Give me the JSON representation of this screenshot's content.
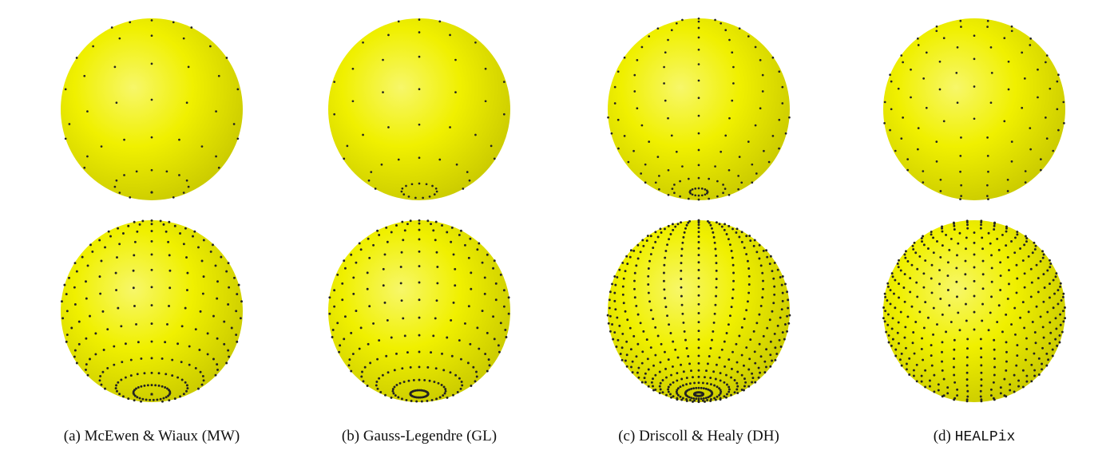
{
  "figure": {
    "panels": [
      {
        "id": "a",
        "prefix": "(a) ",
        "name": "McEwen & Wiaux (MW)",
        "monospace": false
      },
      {
        "id": "b",
        "prefix": "(b) ",
        "name": "Gauss-Legendre (GL)",
        "monospace": false
      },
      {
        "id": "c",
        "prefix": "(c) ",
        "name": "Driscoll & Healy (DH)",
        "monospace": false
      },
      {
        "id": "d",
        "prefix": "(d) ",
        "name": "HEALPix",
        "monospace": true
      }
    ],
    "colors": {
      "sphere_highlight": "#f7f76a",
      "sphere_base": "#f0f000",
      "sphere_shadow": "#c4c400",
      "sample_dot": "#222222"
    }
  }
}
